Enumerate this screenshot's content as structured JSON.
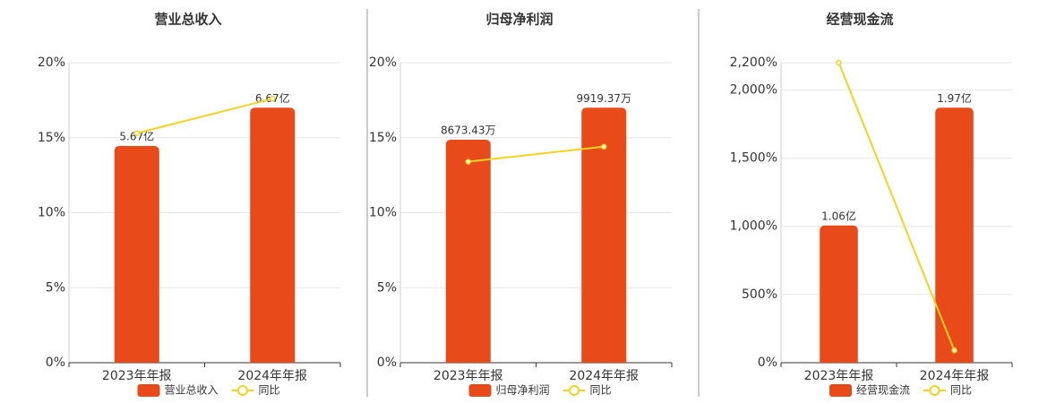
{
  "chart_data": [
    {
      "type": "bar",
      "title": "营业总收入",
      "categories": [
        "2023年年报",
        "2024年年报"
      ],
      "series": [
        {
          "name": "营业总收入",
          "color": "#e84a1a",
          "values": [
            5.67,
            6.67
          ],
          "value_labels": [
            "5.67亿",
            "6.67亿"
          ]
        },
        {
          "name": "同比",
          "color": "#f5d21f",
          "type": "line",
          "values": [
            15.3,
            17.6
          ]
        }
      ],
      "ylim": [
        0,
        20
      ],
      "yticks": [
        {
          "value": 0,
          "label": "0%"
        },
        {
          "value": 5,
          "label": "5%"
        },
        {
          "value": 10,
          "label": "10%"
        },
        {
          "value": 15,
          "label": "15%"
        },
        {
          "value": 20,
          "label": "20%"
        }
      ],
      "grid": true
    },
    {
      "type": "bar",
      "title": "归母净利润",
      "categories": [
        "2023年年报",
        "2024年年报"
      ],
      "series": [
        {
          "name": "归母净利润",
          "color": "#e84a1a",
          "values": [
            8673.43,
            9919.37
          ],
          "value_labels": [
            "8673.43万",
            "9919.37万"
          ]
        },
        {
          "name": "同比",
          "color": "#f5d21f",
          "type": "line",
          "values": [
            13.4,
            14.4
          ]
        }
      ],
      "ylim": [
        0,
        20
      ],
      "yticks": [
        {
          "value": 0,
          "label": "0%"
        },
        {
          "value": 5,
          "label": "5%"
        },
        {
          "value": 10,
          "label": "10%"
        },
        {
          "value": 15,
          "label": "15%"
        },
        {
          "value": 20,
          "label": "20%"
        }
      ],
      "grid": true
    },
    {
      "type": "bar",
      "title": "经营现金流",
      "categories": [
        "2023年年报",
        "2024年年报"
      ],
      "series": [
        {
          "name": "经营现金流",
          "color": "#e84a1a",
          "values": [
            1.06,
            1.97
          ],
          "value_labels": [
            "1.06亿",
            "1.97亿"
          ]
        },
        {
          "name": "同比",
          "color": "#f5d21f",
          "type": "line",
          "values": [
            2200,
            90
          ]
        }
      ],
      "ylim": [
        0,
        2200
      ],
      "yticks": [
        {
          "value": 0,
          "label": "0%"
        },
        {
          "value": 500,
          "label": "500%"
        },
        {
          "value": 1000,
          "label": "1,000%"
        },
        {
          "value": 1500,
          "label": "1,500%"
        },
        {
          "value": 2000,
          "label": "2,000%"
        },
        {
          "value": 2200,
          "label": "2,200%"
        }
      ],
      "grid": true
    }
  ]
}
